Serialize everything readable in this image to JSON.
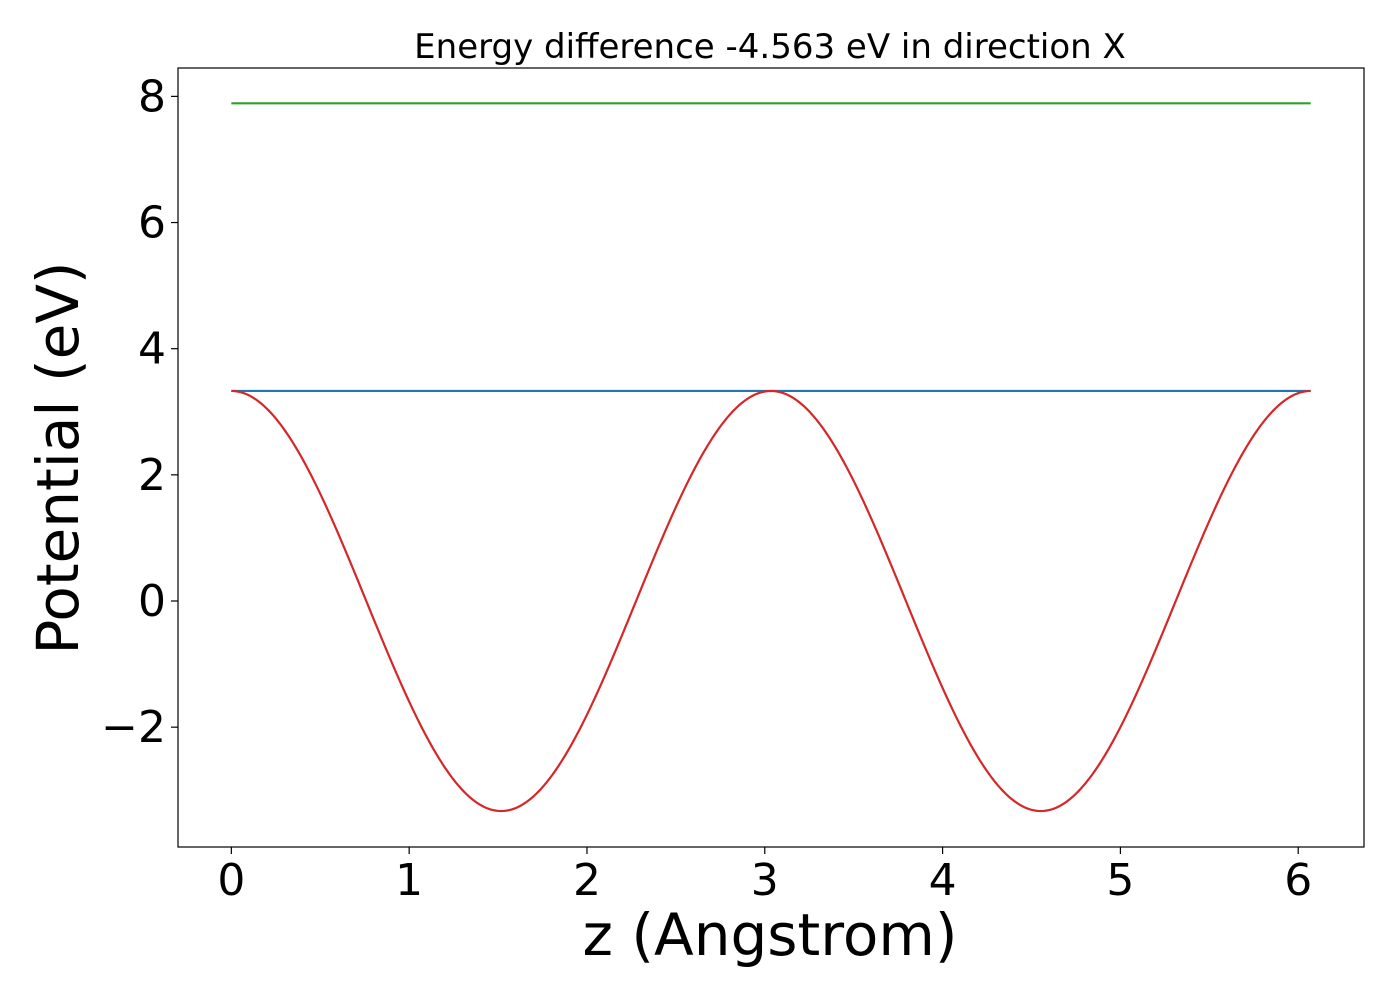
{
  "chart_data": {
    "type": "line",
    "title": "Energy difference -4.563 eV in direction X",
    "xlabel": "z (Angstrom)",
    "ylabel": "Potential (eV)",
    "xlim": [
      -0.3,
      6.37
    ],
    "ylim": [
      -3.9,
      8.45
    ],
    "xticks": [
      0,
      1,
      2,
      3,
      4,
      5,
      6
    ],
    "xtick_labels": [
      "0",
      "1",
      "2",
      "3",
      "4",
      "5",
      "6"
    ],
    "yticks": [
      -2,
      0,
      2,
      4,
      6,
      8
    ],
    "ytick_labels": [
      "−2",
      "0",
      "2",
      "4",
      "6",
      "8"
    ],
    "grid": false,
    "legend": "none",
    "series": [
      {
        "color": "#2ca02c",
        "x": [
          0,
          6.07
        ],
        "y": [
          7.89,
          7.89
        ]
      },
      {
        "color": "#1f77b4",
        "x": [
          0,
          6.07
        ],
        "y": [
          3.33,
          3.33
        ]
      },
      {
        "color": "#d62728",
        "x": [
          0,
          0.38,
          0.76,
          1.14,
          1.52,
          1.9,
          2.28,
          2.66,
          3.04,
          3.42,
          3.8,
          4.18,
          4.56,
          4.94,
          5.32,
          5.7,
          6.07
        ],
        "y": [
          3.33,
          2.35,
          0.0,
          -2.35,
          -3.33,
          -2.35,
          0.0,
          2.35,
          3.33,
          2.35,
          0.0,
          -2.35,
          -3.33,
          -2.35,
          0.0,
          2.35,
          3.33
        ]
      }
    ]
  }
}
